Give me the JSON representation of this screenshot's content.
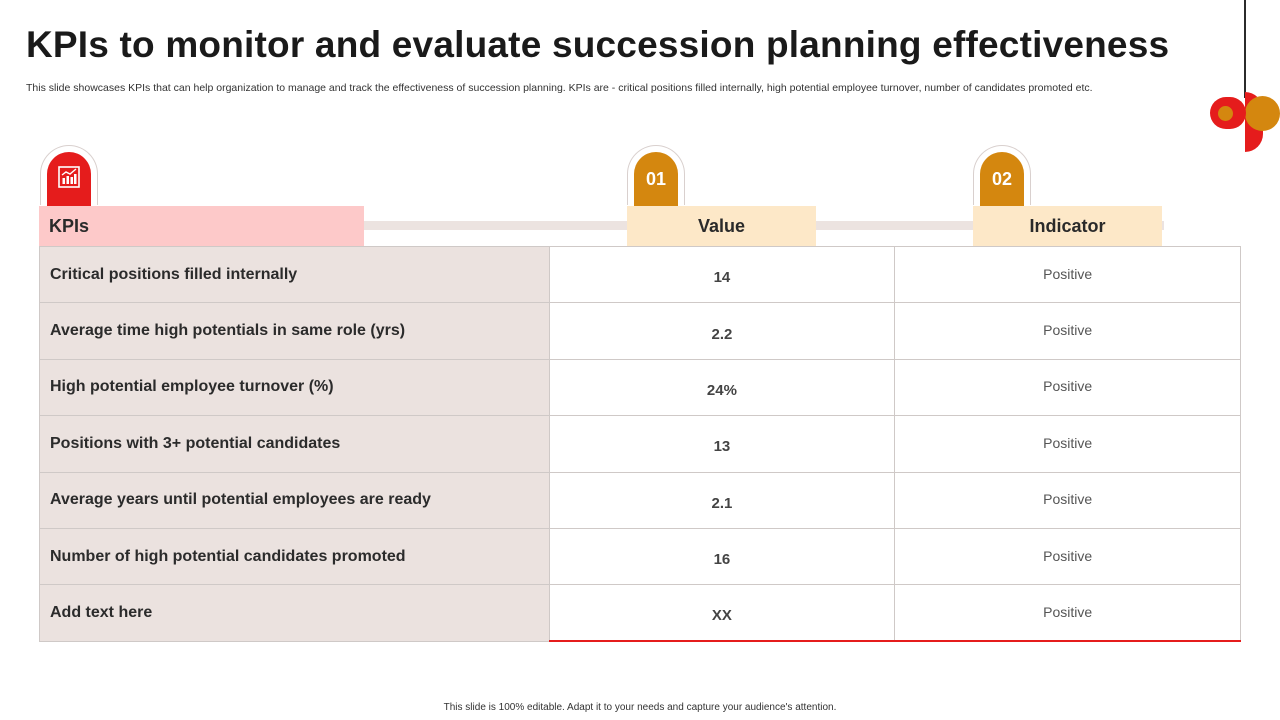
{
  "slide": {
    "title": "KPIs to monitor and evaluate succession planning effectiveness",
    "subtitle": "This slide showcases KPIs that can help organization to manage and track the effectiveness of succession planning. KPIs are -  critical positions filled internally, high potential employee turnover, number of candidates promoted etc.",
    "footer": "This slide is 100% editable.  Adapt it to your needs and capture your audience's attention."
  },
  "colors": {
    "accent_red": "#e51c1c",
    "accent_gold": "#d4870f",
    "kpi_header_bg": "#fdc9c9",
    "col_header_bg": "#fde8c8",
    "kpi_cell_bg": "#ebe2df"
  },
  "table": {
    "tabs": {
      "kpi_icon": "bar-chart-icon",
      "value_badge": "01",
      "indicator_badge": "02"
    },
    "headers": {
      "kpi": "KPIs",
      "value": "Value",
      "indicator": "Indicator"
    },
    "rows": [
      {
        "kpi": "Critical positions filled internally",
        "value": "14",
        "indicator": "Positive"
      },
      {
        "kpi": "Average time high potentials in same role (yrs)",
        "value": "2.2",
        "indicator": "Positive"
      },
      {
        "kpi": "High potential employee turnover (%)",
        "value": "24%",
        "indicator": "Positive"
      },
      {
        "kpi": "Positions with 3+ potential candidates",
        "value": "13",
        "indicator": "Positive"
      },
      {
        "kpi": "Average years until potential employees are ready",
        "value": "2.1",
        "indicator": "Positive"
      },
      {
        "kpi": "Number of high potential candidates promoted",
        "value": "16",
        "indicator": "Positive"
      },
      {
        "kpi": "Add text here",
        "value": "XX",
        "indicator": "Positive"
      }
    ]
  }
}
